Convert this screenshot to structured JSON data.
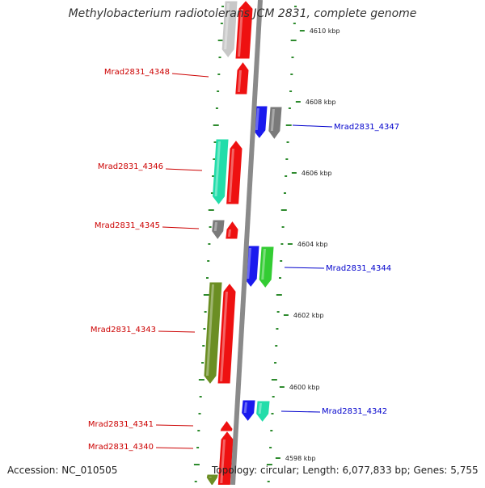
{
  "header": {
    "title": "Methylobacterium radiotolerans JCM 2831, complete genome"
  },
  "footer": {
    "accession": "Accession: NC_010505",
    "topology": "Topology: circular; Length: 6,077,833 bp; Genes: 5,755"
  },
  "colors": {
    "left_label": "#cc0000",
    "right_label": "#0000cc",
    "tick": "#2e8b2e",
    "backbone": "#8a8a8a",
    "red": "#ee1111",
    "blue": "#1a1aee",
    "gray": "#7a7a7a",
    "light_gray": "#c8c8c8",
    "teal": "#22ddaa",
    "green": "#33cc33",
    "olive": "#6b8e23",
    "pink": "#ffb0b0"
  },
  "scale": {
    "ticks": [
      {
        "kbp": 4610,
        "label": "4610 kbp"
      },
      {
        "kbp": 4608,
        "label": "4608 kbp"
      },
      {
        "kbp": 4606,
        "label": "4606 kbp"
      },
      {
        "kbp": 4604,
        "label": "4604 kbp"
      },
      {
        "kbp": 4602,
        "label": "4602 kbp"
      },
      {
        "kbp": 4600,
        "label": "4600 kbp"
      },
      {
        "kbp": 4598,
        "label": "4598 kbp"
      }
    ]
  },
  "genes": [
    {
      "label": "Mrad2831_4348",
      "side": "left"
    },
    {
      "label": "Mrad2831_4347",
      "side": "right"
    },
    {
      "label": "Mrad2831_4346",
      "side": "left"
    },
    {
      "label": "Mrad2831_4345",
      "side": "left"
    },
    {
      "label": "Mrad2831_4344",
      "side": "right"
    },
    {
      "label": "Mrad2831_4343",
      "side": "left"
    },
    {
      "label": "Mrad2831_4342",
      "side": "right"
    },
    {
      "label": "Mrad2831_4341",
      "side": "left"
    },
    {
      "label": "Mrad2831_4340",
      "side": "left"
    }
  ]
}
